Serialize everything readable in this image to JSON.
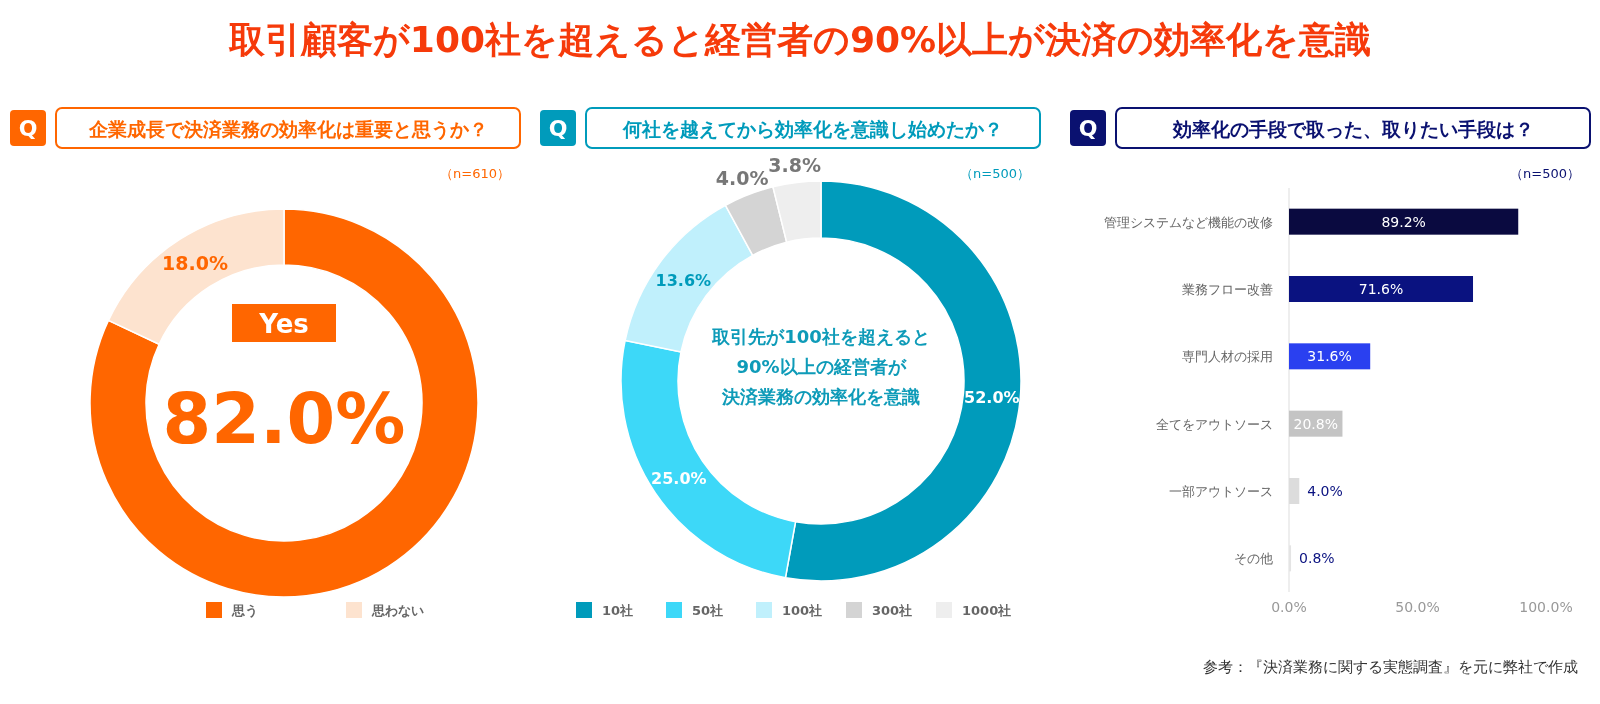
{
  "chart_data": [
    {
      "type": "other",
      "title": "取引顧客が100社を超えると経営者の90%以上が決済の効率化を意識",
      "annotations": [
        "参考：『決済業務に関する実態調査』を元に弊社で作成"
      ]
    },
    {
      "type": "donut",
      "title": "企業成長で決済業務の効率化は重要と思うか？",
      "subtitle": "（n=610）",
      "categories": [
        "思う",
        "思わない"
      ],
      "values": [
        82.0,
        18.0
      ],
      "colors": [
        "#ff6600",
        "#fde3cf"
      ],
      "value_labels": [
        null,
        "18.0%"
      ],
      "annotations": [
        "Q",
        "Yes",
        "82.0%"
      ],
      "legend": "bottom"
    },
    {
      "type": "donut",
      "title": "何社を越えてから効率化を意識し始めたか？",
      "subtitle": "（n=500）",
      "categories": [
        "10社",
        "50社",
        "100社",
        "300社",
        "1000社"
      ],
      "values": [
        52.0,
        25.0,
        13.6,
        4.0,
        3.8
      ],
      "colors": [
        "#009bbb",
        "#3dd8f8",
        "#c0f0fc",
        "#d4d4d4",
        "#eeeeee"
      ],
      "value_labels": [
        "52.0%",
        "25.0%",
        "13.6%",
        "4.0%",
        "3.8%"
      ],
      "annotations": [
        "Q",
        "取引先が100社を超えると",
        "90%以上の経営者が",
        "決済業務の効率化を意識"
      ],
      "legend": "bottom"
    },
    {
      "type": "bar",
      "orientation": "horizontal",
      "title": "効率化の手段で取った、取りたい手段は？",
      "subtitle": "（n=500）",
      "categories": [
        "管理システムなど機能の改修",
        "業務フロー改善",
        "専門人材の採用",
        "全てをアウトソース",
        "一部アウトソース",
        "その他"
      ],
      "values": [
        89.2,
        71.6,
        31.6,
        20.8,
        4.0,
        0.8
      ],
      "colors": [
        "#0a0a40",
        "#0a1280",
        "#2a40f0",
        "#c4c4c4",
        "#dcdcdc",
        "#e4e4e4"
      ],
      "value_labels": [
        "89.2%",
        "71.6%",
        "31.6%",
        "20.8%",
        "4.0%",
        "0.8%"
      ],
      "xlim": [
        0,
        100
      ],
      "xticks": [
        {
          "value": 0,
          "label": "0.0%"
        },
        {
          "value": 50,
          "label": "50.0%"
        },
        {
          "value": 100,
          "label": "100.0%"
        }
      ],
      "annotations": [
        "Q"
      ],
      "grid": false
    }
  ]
}
